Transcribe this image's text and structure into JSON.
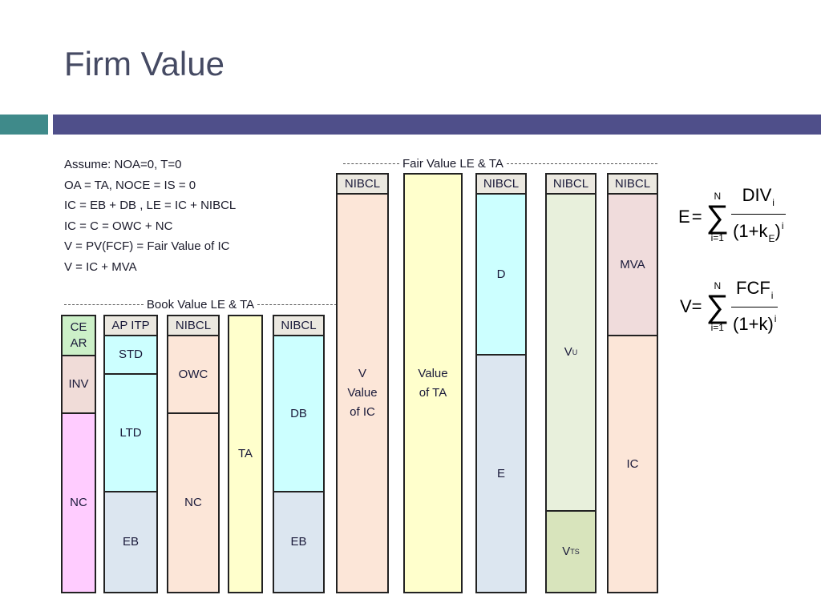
{
  "slide": {
    "title": "Firm Value"
  },
  "assumptions": [
    "Assume:  NOA=0, T=0",
    "OA = TA, NOCE = IS = 0",
    "IC = EB + DB , LE = IC + NIBCL",
    "IC  = C =  OWC + NC",
    "V = PV(FCF) = Fair Value of IC",
    "V = IC + MVA"
  ],
  "sections": {
    "book": "Book Value LE & TA",
    "fair": "Fair Value LE & TA"
  },
  "columns": {
    "c1": [
      "CE AR",
      "INV",
      "NC"
    ],
    "c2": [
      "AP ITP",
      "STD",
      "LTD",
      "EB"
    ],
    "c3": [
      "NIBCL",
      "OWC",
      "NC"
    ],
    "c4": [
      "TA"
    ],
    "c5": [
      "NIBCL",
      "DB",
      "EB"
    ],
    "c6": [
      "NIBCL",
      "V Value of IC"
    ],
    "c7": [
      "Value of TA"
    ],
    "c8": [
      "NIBCL",
      "D",
      "E"
    ],
    "c9": [
      "NIBCL",
      "V",
      "U",
      "V",
      "TS"
    ],
    "c10": [
      "NIBCL",
      "MVA",
      "IC"
    ]
  },
  "formulas": {
    "e": {
      "lhs": "E",
      "eq": "=",
      "sum": "∑",
      "upper": "N",
      "lower": "i=1",
      "num": "DIV",
      "num_sub": "i",
      "den": "(1+k",
      "den_sub": "E",
      "den_close": ")",
      "den_sup": "i"
    },
    "v": {
      "lhs": "V=",
      "sum": "∑",
      "upper": "N",
      "lower": "i=1",
      "num": "FCF",
      "num_sub": "i",
      "den": "(1+k)",
      "den_sup": "i"
    }
  },
  "colors": {
    "accent_band": "#4f4f8a",
    "accent_teal": "#3f8a8a",
    "cyan": "#ccffff",
    "peach": "#fce6d8",
    "yellow": "#ffffcc",
    "pink": "#ffccff",
    "blue_gray": "#dce6f0",
    "green": "#ccf0c8",
    "sage": "#e8f0dc",
    "olive": "#d8e4bc",
    "rose": "#f0dcdc"
  }
}
